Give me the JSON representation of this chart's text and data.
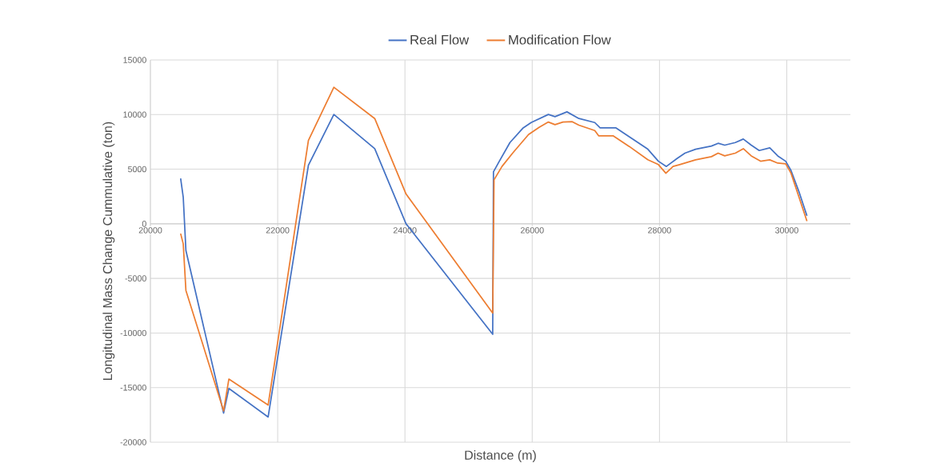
{
  "chart_data": {
    "type": "line",
    "xlabel": "Distance (m)",
    "ylabel": "Longitudinal Mass Change Cummulative (ton)",
    "xlim": [
      20000,
      31000
    ],
    "xticks": [
      20000,
      22000,
      24000,
      26000,
      28000,
      30000
    ],
    "ylim": [
      -20000,
      15000
    ],
    "yticks": [
      -20000,
      -15000,
      -10000,
      -5000,
      0,
      5000,
      10000,
      15000
    ],
    "grid": true,
    "legend": "top",
    "marker": "none",
    "line_style": "solid",
    "series": [
      {
        "name": "Real Flow",
        "color": "#4472c4",
        "x": [
          20475,
          20516,
          20558,
          21150,
          21233,
          21850,
          22483,
          22883,
          23525,
          24017,
          25379,
          25391,
          25483,
          25650,
          25858,
          25983,
          26254,
          26358,
          26546,
          26733,
          26983,
          27067,
          27317,
          27567,
          27817,
          27983,
          28108,
          28275,
          28400,
          28567,
          28817,
          28921,
          29025,
          29192,
          29317,
          29442,
          29567,
          29733,
          29858,
          29983,
          30067,
          30192,
          30317
        ],
        "values": [
          4150,
          2440,
          -2440,
          -17330,
          -15080,
          -17690,
          5370,
          10010,
          6880,
          0,
          -10120,
          4760,
          5730,
          7440,
          8780,
          9270,
          10010,
          9810,
          10250,
          9640,
          9270,
          8780,
          8780,
          7810,
          6830,
          5730,
          5250,
          5980,
          6470,
          6830,
          7120,
          7370,
          7200,
          7440,
          7760,
          7200,
          6710,
          6950,
          6220,
          5730,
          4880,
          2930,
          730
        ]
      },
      {
        "name": "Modification Flow",
        "color": "#ed7d31",
        "x": [
          20475,
          20516,
          20558,
          21150,
          21233,
          21850,
          22483,
          22883,
          23525,
          24017,
          25379,
          25400,
          25525,
          25692,
          25942,
          26108,
          26254,
          26358,
          26483,
          26629,
          26733,
          26983,
          27046,
          27275,
          27525,
          27817,
          27983,
          28100,
          28213,
          28317,
          28567,
          28817,
          28921,
          29025,
          29192,
          29317,
          29442,
          29588,
          29733,
          29858,
          29983,
          30067,
          30192,
          30317
        ],
        "values": [
          -900,
          -1830,
          -6100,
          -17130,
          -14220,
          -16600,
          7640,
          12500,
          9640,
          2730,
          -8170,
          4030,
          5250,
          6470,
          8170,
          8830,
          9320,
          9080,
          9320,
          9350,
          9030,
          8540,
          8050,
          8050,
          7080,
          5860,
          5420,
          4630,
          5250,
          5420,
          5860,
          6150,
          6470,
          6220,
          6470,
          6880,
          6220,
          5730,
          5860,
          5560,
          5490,
          4630,
          2440,
          240
        ]
      }
    ]
  }
}
